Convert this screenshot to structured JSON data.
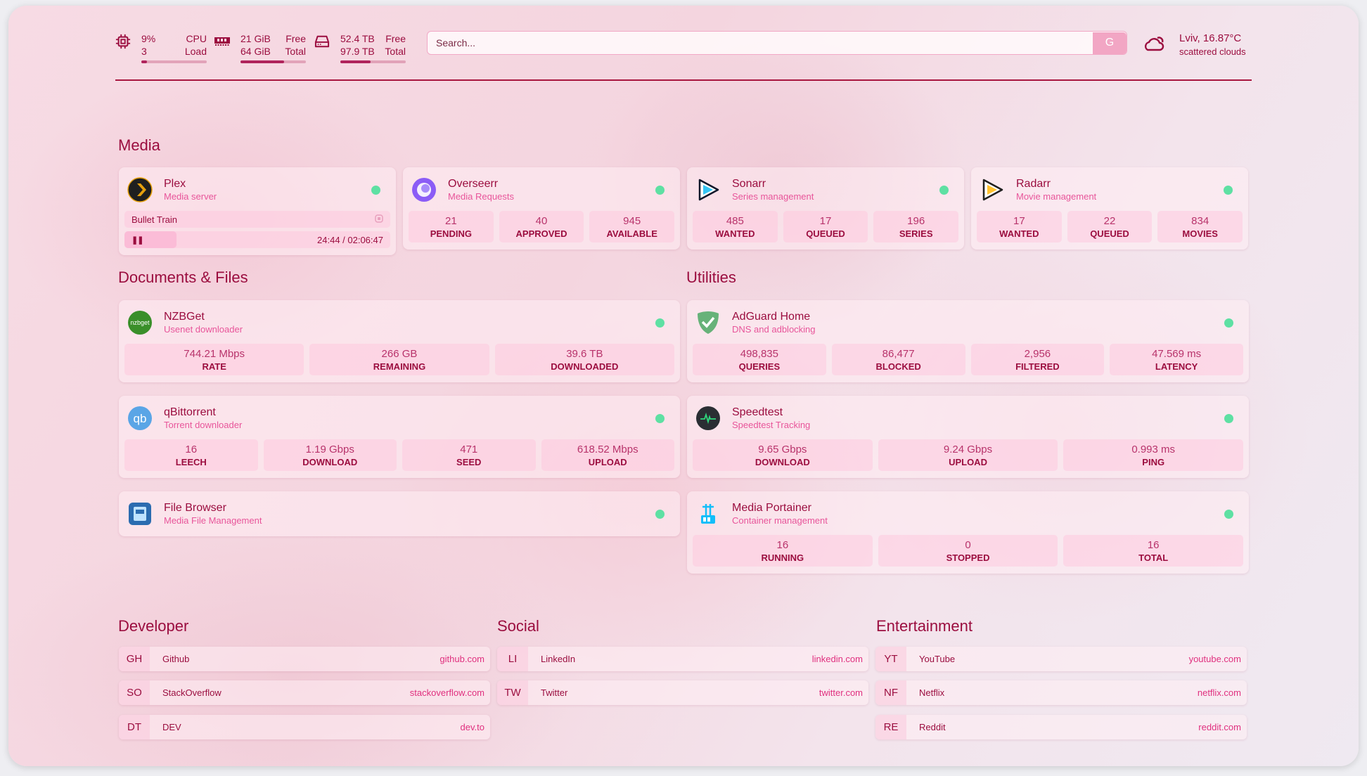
{
  "header": {
    "cpu": {
      "icon": "cpu-icon",
      "value": "9%",
      "sub": "3",
      "label1": "CPU",
      "label2": "Load",
      "percent": 9
    },
    "memory": {
      "icon": "memory-icon",
      "value": "21 GiB",
      "sub": "64 GiB",
      "label1": "Free",
      "label2": "Total",
      "percent": 67
    },
    "disk": {
      "icon": "hard-drive-icon",
      "value": "52.4 TB",
      "sub": "97.9 TB",
      "label1": "Free",
      "label2": "Total",
      "percent": 46
    },
    "search": {
      "placeholder": "Search...",
      "button": "G"
    },
    "weather": {
      "icon": "cloud-sun-icon",
      "location": "Lviv, 16.87°C",
      "condition": "scattered clouds"
    }
  },
  "colors": {
    "accent": "#9b0d3f",
    "subtitle": "#e8559a",
    "status_online": "#5ee0a3"
  },
  "media": {
    "title": "Media",
    "services": [
      {
        "name": "Plex",
        "desc": "Media server",
        "icon": "plex-icon",
        "now_playing": {
          "title": "Bullet Train",
          "time": "24:44 / 02:06:47",
          "progress": 0.195,
          "state": "paused"
        }
      },
      {
        "name": "Overseerr",
        "desc": "Media Requests",
        "icon": "overseerr-icon",
        "stats": [
          {
            "v": "21",
            "l": "PENDING"
          },
          {
            "v": "40",
            "l": "APPROVED"
          },
          {
            "v": "945",
            "l": "AVAILABLE"
          }
        ]
      },
      {
        "name": "Sonarr",
        "desc": "Series management",
        "icon": "sonarr-icon",
        "stats": [
          {
            "v": "485",
            "l": "WANTED"
          },
          {
            "v": "17",
            "l": "QUEUED"
          },
          {
            "v": "196",
            "l": "SERIES"
          }
        ]
      },
      {
        "name": "Radarr",
        "desc": "Movie management",
        "icon": "radarr-icon",
        "stats": [
          {
            "v": "17",
            "l": "WANTED"
          },
          {
            "v": "22",
            "l": "QUEUED"
          },
          {
            "v": "834",
            "l": "MOVIES"
          }
        ]
      }
    ]
  },
  "documents": {
    "title": "Documents & Files",
    "services": [
      {
        "name": "NZBGet",
        "desc": "Usenet downloader",
        "icon": "nzbget-icon",
        "icon_text": "nzbget",
        "stats": [
          {
            "v": "744.21 Mbps",
            "l": "RATE"
          },
          {
            "v": "266 GB",
            "l": "REMAINING"
          },
          {
            "v": "39.6 TB",
            "l": "DOWNLOADED"
          }
        ]
      },
      {
        "name": "qBittorrent",
        "desc": "Torrent downloader",
        "icon": "qbittorrent-icon",
        "icon_text": "qb",
        "stats": [
          {
            "v": "16",
            "l": "LEECH"
          },
          {
            "v": "1.19 Gbps",
            "l": "DOWNLOAD"
          },
          {
            "v": "471",
            "l": "SEED"
          },
          {
            "v": "618.52 Mbps",
            "l": "UPLOAD"
          }
        ]
      },
      {
        "name": "File Browser",
        "desc": "Media File Management",
        "icon": "file-browser-icon"
      }
    ]
  },
  "utilities": {
    "title": "Utilities",
    "services": [
      {
        "name": "AdGuard Home",
        "desc": "DNS and adblocking",
        "icon": "adguard-icon",
        "stats": [
          {
            "v": "498,835",
            "l": "QUERIES"
          },
          {
            "v": "86,477",
            "l": "BLOCKED"
          },
          {
            "v": "2,956",
            "l": "FILTERED"
          },
          {
            "v": "47.569 ms",
            "l": "LATENCY"
          }
        ]
      },
      {
        "name": "Speedtest",
        "desc": "Speedtest Tracking",
        "icon": "speedtest-icon",
        "stats": [
          {
            "v": "9.65 Gbps",
            "l": "DOWNLOAD"
          },
          {
            "v": "9.24 Gbps",
            "l": "UPLOAD"
          },
          {
            "v": "0.993 ms",
            "l": "PING"
          }
        ]
      },
      {
        "name": "Media Portainer",
        "desc": "Container management",
        "icon": "portainer-icon",
        "stats": [
          {
            "v": "16",
            "l": "RUNNING"
          },
          {
            "v": "0",
            "l": "STOPPED"
          },
          {
            "v": "16",
            "l": "TOTAL"
          }
        ]
      }
    ]
  },
  "bookmarks": [
    {
      "title": "Developer",
      "items": [
        {
          "abbr": "GH",
          "name": "Github",
          "url": "github.com"
        },
        {
          "abbr": "SO",
          "name": "StackOverflow",
          "url": "stackoverflow.com"
        },
        {
          "abbr": "DT",
          "name": "DEV",
          "url": "dev.to"
        }
      ]
    },
    {
      "title": "Social",
      "items": [
        {
          "abbr": "LI",
          "name": "LinkedIn",
          "url": "linkedin.com"
        },
        {
          "abbr": "TW",
          "name": "Twitter",
          "url": "twitter.com"
        }
      ]
    },
    {
      "title": "Entertainment",
      "items": [
        {
          "abbr": "YT",
          "name": "YouTube",
          "url": "youtube.com"
        },
        {
          "abbr": "NF",
          "name": "Netflix",
          "url": "netflix.com"
        },
        {
          "abbr": "RE",
          "name": "Reddit",
          "url": "reddit.com"
        }
      ]
    }
  ]
}
